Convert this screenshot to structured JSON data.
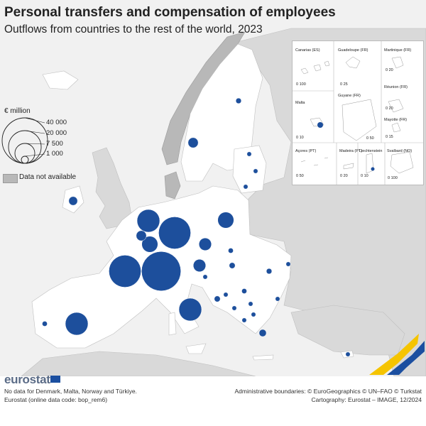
{
  "header": {
    "title": "Personal transfers and compensation of employees",
    "subtitle": "Outflows from countries to the rest of the world, 2023"
  },
  "legend": {
    "unit": "€ million",
    "sizes": [
      "40 000",
      "20 000",
      "7 500",
      "1 000"
    ],
    "not_available": "Data not available"
  },
  "insets": [
    {
      "name": "Canarias (ES)",
      "scale": "0   100"
    },
    {
      "name": "Guadeloupe (FR)",
      "scale": "0   25"
    },
    {
      "name": "Martinique (FR)",
      "scale": "0   20"
    },
    {
      "name": "Réunion (FR)",
      "scale": "0   20"
    },
    {
      "name": "Malta",
      "scale": "0   10"
    },
    {
      "name": "Guyane (FR)",
      "scale": "0   50"
    },
    {
      "name": "Mayotte (FR)",
      "scale": "0   15"
    },
    {
      "name": "Açores (PT)",
      "scale": "0   50"
    },
    {
      "name": "Madeira (PT)",
      "scale": "0   20"
    },
    {
      "name": "Liechtenstein",
      "scale": "0   10"
    },
    {
      "name": "Svalbard (NO)",
      "scale": "0 100"
    }
  ],
  "footer": {
    "brand": "eurostat",
    "note1": "No data for Denmark, Malta, Norway and Türkiye.",
    "note2": "Eurostat (online data code: bop_rem6)",
    "credit1": "Administrative boundaries: © EuroGeographics © UN–FAO © Turkstat",
    "credit2": "Cartography: Eurostat – IMAGE, 12/2024"
  },
  "colors": {
    "bubble": "#1d4f9c",
    "reporting_land": "#ffffff",
    "other_land": "#d9d9d9",
    "no_data_land": "#b8b8b8",
    "sea": "#f1f1f1"
  },
  "bubbles": [
    {
      "country": "Luxembourg",
      "approx_value": 30000
    },
    {
      "country": "Germany",
      "approx_value": 20000
    },
    {
      "country": "France",
      "approx_value": 20000
    },
    {
      "country": "Spain",
      "approx_value": 10000
    },
    {
      "country": "Italy",
      "approx_value": 10000
    },
    {
      "country": "Netherlands",
      "approx_value": 10000
    },
    {
      "country": "Belgium",
      "approx_value": 5000
    },
    {
      "country": "Poland",
      "approx_value": 5000
    },
    {
      "country": "Austria",
      "approx_value": 3000
    },
    {
      "country": "Czechia",
      "approx_value": 3000
    },
    {
      "country": "Switzerland",
      "approx_value": 2000
    },
    {
      "country": "Sweden",
      "approx_value": 2000
    },
    {
      "country": "Ireland",
      "approx_value": 1500
    },
    {
      "country": "Portugal",
      "approx_value": 500
    },
    {
      "country": "Finland",
      "approx_value": 600
    },
    {
      "country": "Greece",
      "approx_value": 1000
    },
    {
      "country": "Romania",
      "approx_value": 600
    },
    {
      "country": "Hungary",
      "approx_value": 700
    },
    {
      "country": "Slovakia",
      "approx_value": 500
    },
    {
      "country": "Croatia",
      "approx_value": 700
    },
    {
      "country": "Serbia",
      "approx_value": 500
    },
    {
      "country": "Slovenia",
      "approx_value": 400
    },
    {
      "country": "Lithuania",
      "approx_value": 400
    },
    {
      "country": "Latvia",
      "approx_value": 300
    },
    {
      "country": "Estonia",
      "approx_value": 300
    },
    {
      "country": "Bulgaria",
      "approx_value": 200
    },
    {
      "country": "Bosnia and Herzegovina",
      "approx_value": 200
    },
    {
      "country": "Montenegro",
      "approx_value": 150
    },
    {
      "country": "North Macedonia",
      "approx_value": 150
    },
    {
      "country": "Albania",
      "approx_value": 150
    },
    {
      "country": "Cyprus",
      "approx_value": 300
    },
    {
      "country": "Moldova",
      "approx_value": 150
    },
    {
      "country": "Kosovo",
      "approx_value": 100
    }
  ]
}
